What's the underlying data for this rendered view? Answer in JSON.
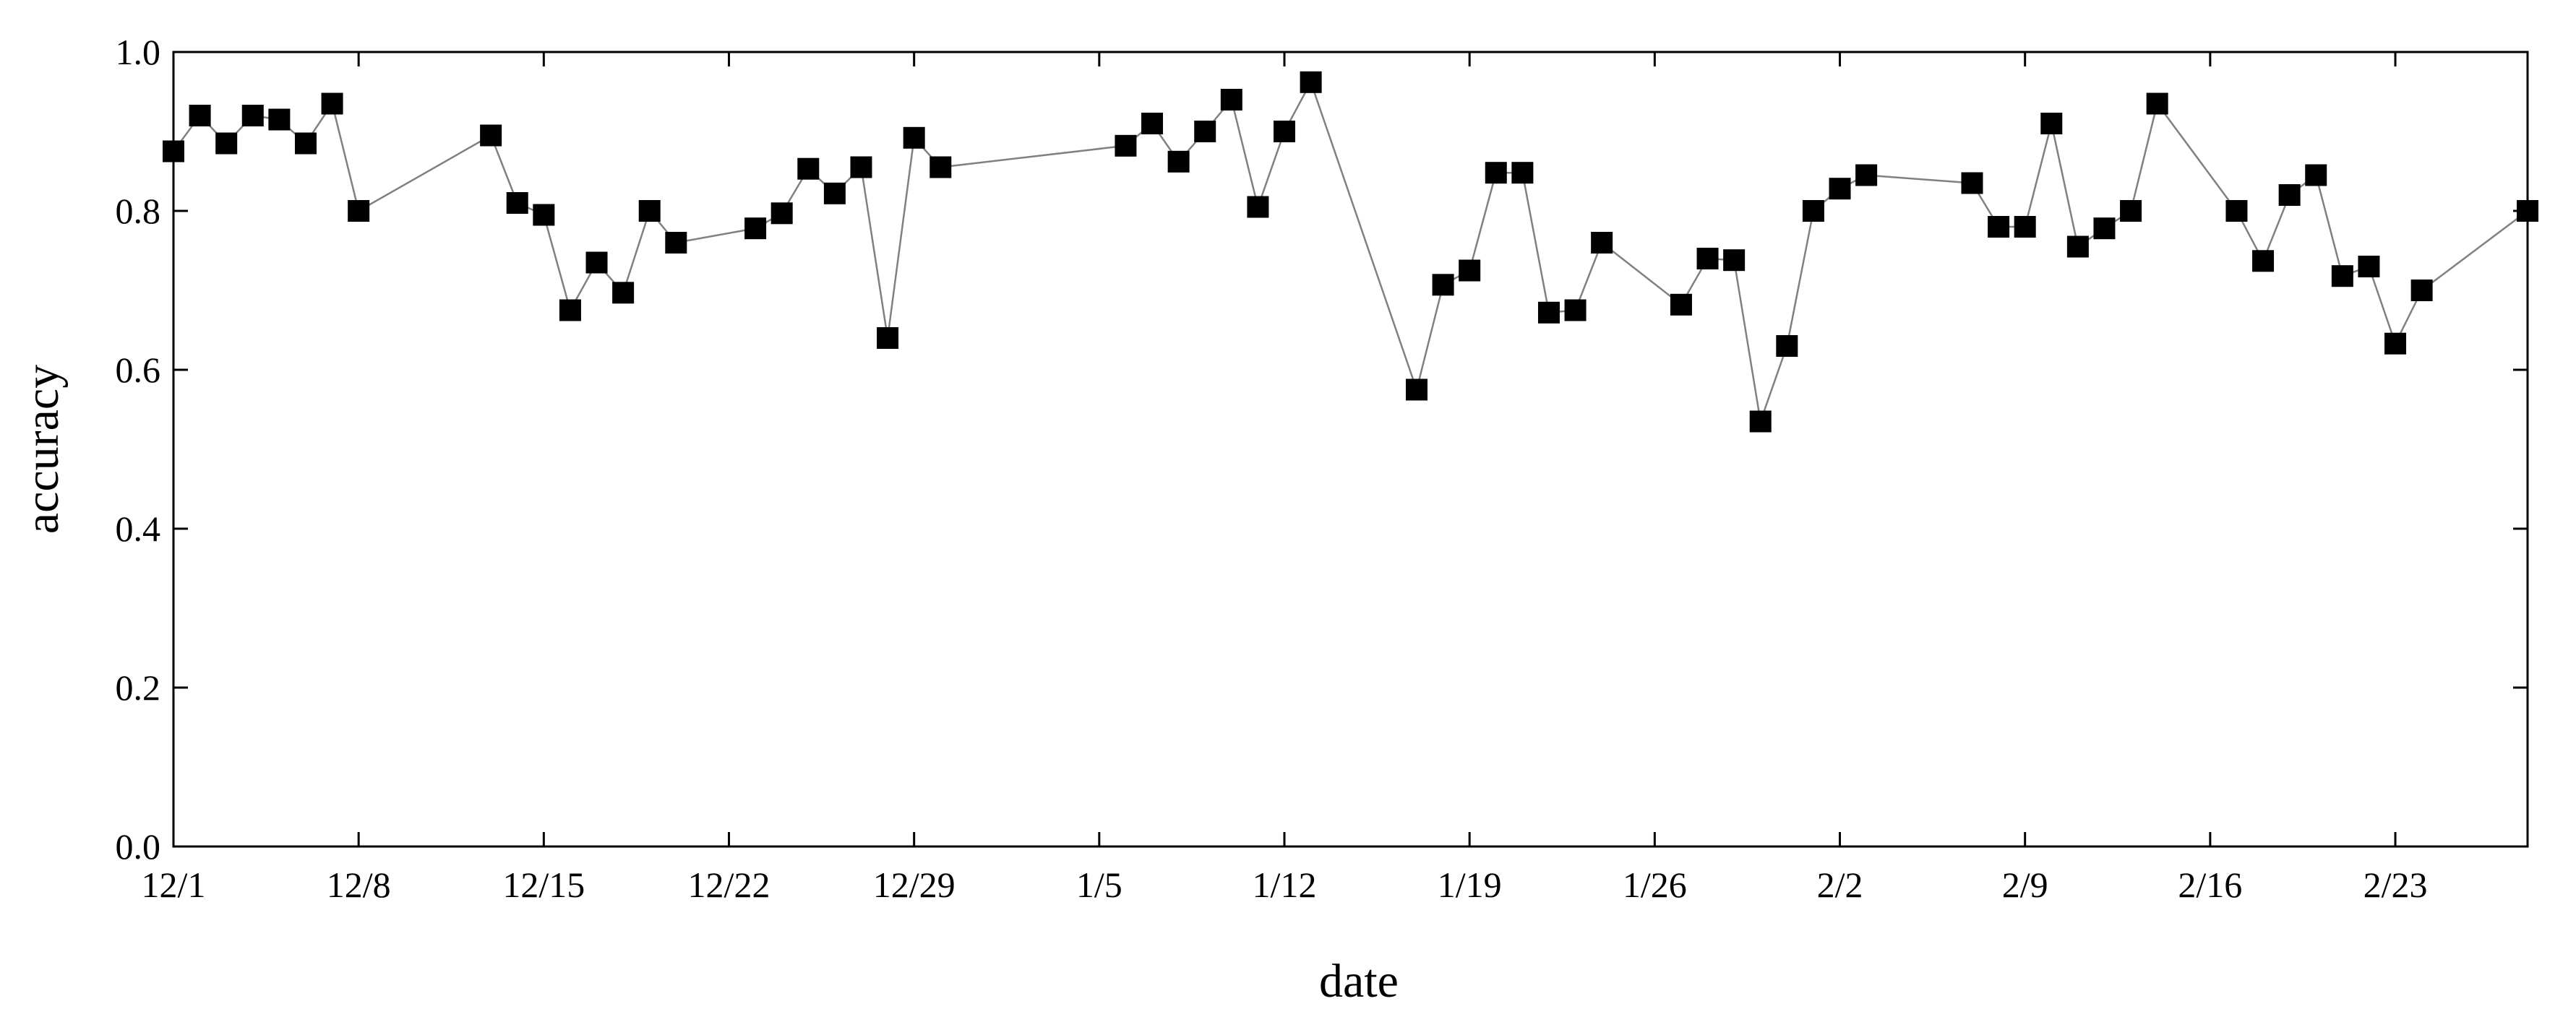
{
  "chart_data": {
    "type": "scatter",
    "xlabel": "date",
    "ylabel": "accuracy",
    "ylim": [
      0.0,
      1.0
    ],
    "y_ticks": [
      "0.0",
      "0.2",
      "0.4",
      "0.6",
      "0.8",
      "1.0"
    ],
    "x_ticks": [
      "12/1",
      "12/8",
      "12/15",
      "12/22",
      "12/29",
      "1/5",
      "1/12",
      "1/19",
      "1/26",
      "2/2",
      "2/9",
      "2/16",
      "2/23"
    ],
    "grid": false,
    "legend": "none",
    "marker": "square",
    "connected": true,
    "colors": {
      "marker": "#000000",
      "line": "#808080",
      "axes": "#000000"
    },
    "series": [
      {
        "x": [
          "12/1",
          "12/2",
          "12/3",
          "12/4",
          "12/5",
          "12/6",
          "12/7",
          "12/8",
          "12/13",
          "12/14",
          "12/15",
          "12/16",
          "12/17",
          "12/18",
          "12/19",
          "12/20",
          "12/23",
          "12/24",
          "12/25",
          "12/26",
          "12/27",
          "12/28",
          "12/29",
          "12/30",
          "1/6",
          "1/7",
          "1/8",
          "1/9",
          "1/10",
          "1/11",
          "1/12",
          "1/13",
          "1/17",
          "1/18",
          "1/19",
          "1/20",
          "1/21",
          "1/22",
          "1/23",
          "1/24",
          "1/27",
          "1/28",
          "1/29",
          "1/30",
          "1/31",
          "2/1",
          "2/2",
          "2/3",
          "2/7",
          "2/8",
          "2/9",
          "2/10",
          "2/11",
          "2/12",
          "2/13",
          "2/14",
          "2/17",
          "2/18",
          "2/19",
          "2/20",
          "2/21",
          "2/22",
          "2/23",
          "2/24",
          "2/28"
        ],
        "y": [
          0.875,
          0.92,
          0.885,
          0.92,
          0.915,
          0.885,
          0.935,
          0.8,
          0.895,
          0.81,
          0.795,
          0.675,
          0.735,
          0.697,
          0.8,
          0.76,
          0.778,
          0.797,
          0.853,
          0.822,
          0.855,
          0.64,
          0.892,
          0.855,
          0.882,
          0.91,
          0.862,
          0.9,
          0.94,
          0.805,
          0.9,
          0.962,
          0.575,
          0.707,
          0.725,
          0.848,
          0.848,
          0.672,
          0.675,
          0.76,
          0.682,
          0.74,
          0.738,
          0.535,
          0.63,
          0.8,
          0.828,
          0.845,
          0.835,
          0.78,
          0.78,
          0.91,
          0.755,
          0.778,
          0.8,
          0.935,
          0.8,
          0.737,
          0.82,
          0.845,
          0.718,
          0.73,
          0.633,
          0.7,
          0.8
        ]
      }
    ]
  }
}
